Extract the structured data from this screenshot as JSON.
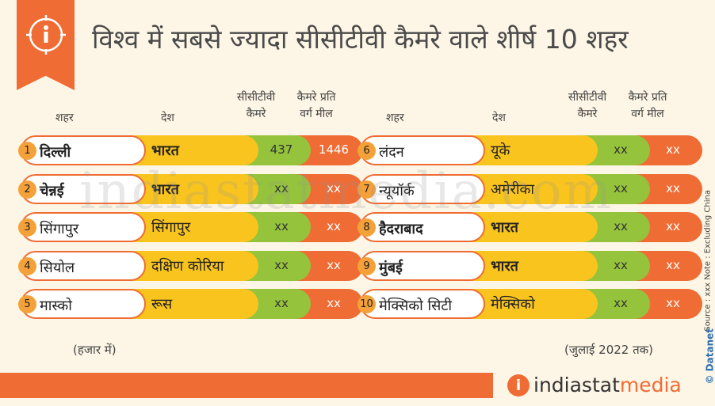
{
  "title": "विश्व में सबसे ज्यादा सीसीटीवी कैमरे वाले शीर्ष 10 शहर",
  "headers": {
    "city": "शहर",
    "country": "देश",
    "cameras_l1": "सीसीटीवी",
    "cameras_l2": "कैमरे",
    "density_l1": "कैमरे प्रति",
    "density_l2": "वर्ग मील"
  },
  "chart_data": {
    "type": "table",
    "columns": [
      "शहर",
      "देश",
      "सीसीटीवी कैमरे",
      "कैमरे प्रति वर्ग मील"
    ],
    "rows": [
      {
        "rank": "1",
        "city": "दिल्ली",
        "country": "भारत",
        "cameras": "437",
        "density": "1446"
      },
      {
        "rank": "2",
        "city": "चेन्नई",
        "country": "भारत",
        "cameras": "xx",
        "density": "xx"
      },
      {
        "rank": "3",
        "city": "सिंगापुर",
        "country": "सिंगापुर",
        "cameras": "xx",
        "density": "xx"
      },
      {
        "rank": "4",
        "city": "सियोल",
        "country": "दक्षिण कोरिया",
        "cameras": "xx",
        "density": "xx"
      },
      {
        "rank": "5",
        "city": "मास्को",
        "country": "रूस",
        "cameras": "xx",
        "density": "xx"
      },
      {
        "rank": "6",
        "city": "लंदन",
        "country": "यूके",
        "cameras": "xx",
        "density": "xx"
      },
      {
        "rank": "7",
        "city": "न्यूयॉर्क",
        "country": "अमेरीका",
        "cameras": "xx",
        "density": "xx"
      },
      {
        "rank": "8",
        "city": "हैदराबाद",
        "country": "भारत",
        "cameras": "xx",
        "density": "xx"
      },
      {
        "rank": "9",
        "city": "मुंबई",
        "country": "भारत",
        "cameras": "xx",
        "density": "xx"
      },
      {
        "rank": "10",
        "city": "मेक्सिको सिटी",
        "country": "मेक्सिको",
        "cameras": "xx",
        "density": "xx"
      }
    ]
  },
  "footer": {
    "unit_note": "(हजार में)",
    "date_note": "(जुलाई 2022 तक)",
    "side_note": "Source : xxx   Note : Excluding China",
    "datanet": "© Datanet"
  },
  "watermark": "indiastatmedia.com",
  "logo": {
    "icon": "i",
    "part1": "indiastat",
    "part2": "media"
  },
  "colors": {
    "accent": "#ef6c34",
    "yellow": "#f9c41e",
    "green": "#95c33c",
    "background": "#fdf6e6"
  }
}
